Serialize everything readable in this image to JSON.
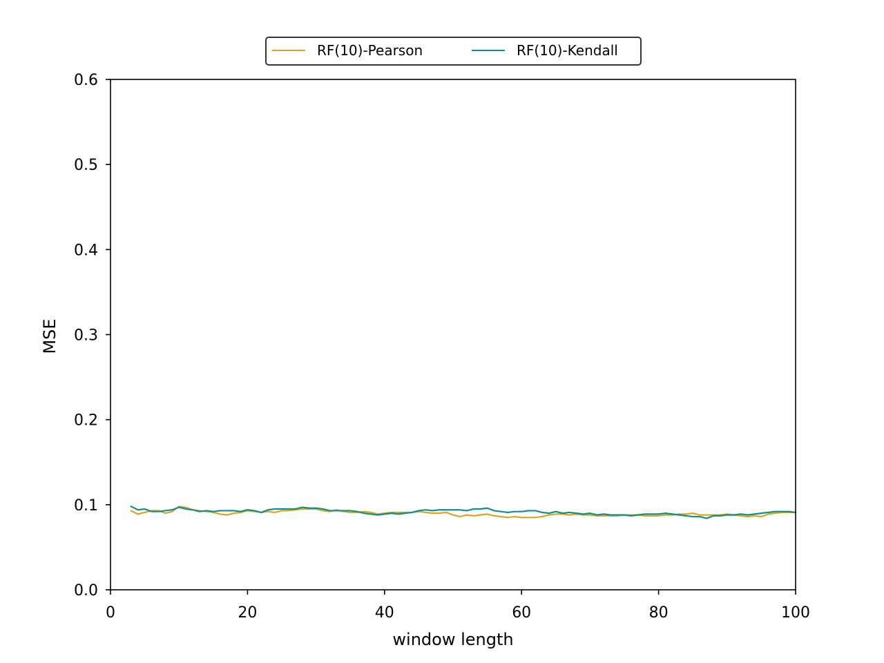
{
  "chart_data": {
    "type": "line",
    "title": "",
    "xlabel": "window length",
    "ylabel": "MSE",
    "xlim": [
      0,
      100
    ],
    "ylim": [
      0.0,
      0.6
    ],
    "grid": false,
    "legend_position": "top-center",
    "x_ticks": [
      "0",
      "20",
      "40",
      "60",
      "80",
      "100"
    ],
    "y_ticks": [
      "0.0",
      "0.1",
      "0.2",
      "0.3",
      "0.4",
      "0.5",
      "0.6"
    ],
    "x": [
      3,
      4,
      5,
      6,
      7,
      8,
      9,
      10,
      11,
      12,
      13,
      14,
      15,
      16,
      17,
      18,
      19,
      20,
      21,
      22,
      23,
      24,
      25,
      26,
      27,
      28,
      29,
      30,
      31,
      32,
      33,
      34,
      35,
      36,
      37,
      38,
      39,
      40,
      41,
      42,
      43,
      44,
      45,
      46,
      47,
      48,
      49,
      50,
      51,
      52,
      53,
      54,
      55,
      56,
      57,
      58,
      59,
      60,
      61,
      62,
      63,
      64,
      65,
      66,
      67,
      68,
      69,
      70,
      71,
      72,
      73,
      74,
      75,
      76,
      77,
      78,
      79,
      80,
      81,
      82,
      83,
      84,
      85,
      86,
      87,
      88,
      89,
      90,
      91,
      92,
      93,
      94,
      95,
      96,
      97,
      98,
      99,
      100
    ],
    "series": [
      {
        "name": "RF(10)-Pearson",
        "color": "#DAA520",
        "values": [
          0.093,
          0.089,
          0.091,
          0.093,
          0.093,
          0.09,
          0.092,
          0.098,
          0.097,
          0.094,
          0.093,
          0.092,
          0.091,
          0.089,
          0.088,
          0.09,
          0.091,
          0.093,
          0.092,
          0.091,
          0.092,
          0.091,
          0.093,
          0.093,
          0.094,
          0.095,
          0.095,
          0.095,
          0.093,
          0.092,
          0.094,
          0.092,
          0.091,
          0.091,
          0.092,
          0.091,
          0.089,
          0.09,
          0.091,
          0.091,
          0.091,
          0.091,
          0.092,
          0.091,
          0.09,
          0.09,
          0.091,
          0.088,
          0.086,
          0.088,
          0.087,
          0.088,
          0.089,
          0.087,
          0.086,
          0.085,
          0.086,
          0.085,
          0.085,
          0.085,
          0.086,
          0.088,
          0.089,
          0.089,
          0.088,
          0.089,
          0.088,
          0.088,
          0.087,
          0.087,
          0.087,
          0.087,
          0.088,
          0.088,
          0.088,
          0.087,
          0.087,
          0.087,
          0.088,
          0.088,
          0.089,
          0.089,
          0.09,
          0.088,
          0.088,
          0.088,
          0.088,
          0.089,
          0.088,
          0.087,
          0.086,
          0.087,
          0.086,
          0.089,
          0.09,
          0.091,
          0.091,
          0.091
        ]
      },
      {
        "name": "RF(10)-Kendall",
        "color": "#108E88",
        "values": [
          0.098,
          0.094,
          0.095,
          0.092,
          0.092,
          0.093,
          0.094,
          0.097,
          0.095,
          0.094,
          0.092,
          0.093,
          0.092,
          0.093,
          0.093,
          0.093,
          0.092,
          0.094,
          0.093,
          0.091,
          0.094,
          0.095,
          0.095,
          0.095,
          0.095,
          0.097,
          0.096,
          0.096,
          0.095,
          0.093,
          0.093,
          0.093,
          0.093,
          0.092,
          0.09,
          0.089,
          0.088,
          0.089,
          0.09,
          0.089,
          0.09,
          0.091,
          0.093,
          0.094,
          0.093,
          0.094,
          0.094,
          0.094,
          0.094,
          0.093,
          0.095,
          0.095,
          0.096,
          0.093,
          0.092,
          0.091,
          0.092,
          0.092,
          0.093,
          0.093,
          0.091,
          0.09,
          0.092,
          0.09,
          0.091,
          0.09,
          0.089,
          0.09,
          0.088,
          0.089,
          0.088,
          0.088,
          0.088,
          0.087,
          0.088,
          0.089,
          0.089,
          0.089,
          0.09,
          0.089,
          0.088,
          0.087,
          0.086,
          0.086,
          0.084,
          0.087,
          0.087,
          0.088,
          0.088,
          0.089,
          0.088,
          0.089,
          0.09,
          0.091,
          0.092,
          0.092,
          0.092,
          0.091
        ]
      }
    ]
  }
}
